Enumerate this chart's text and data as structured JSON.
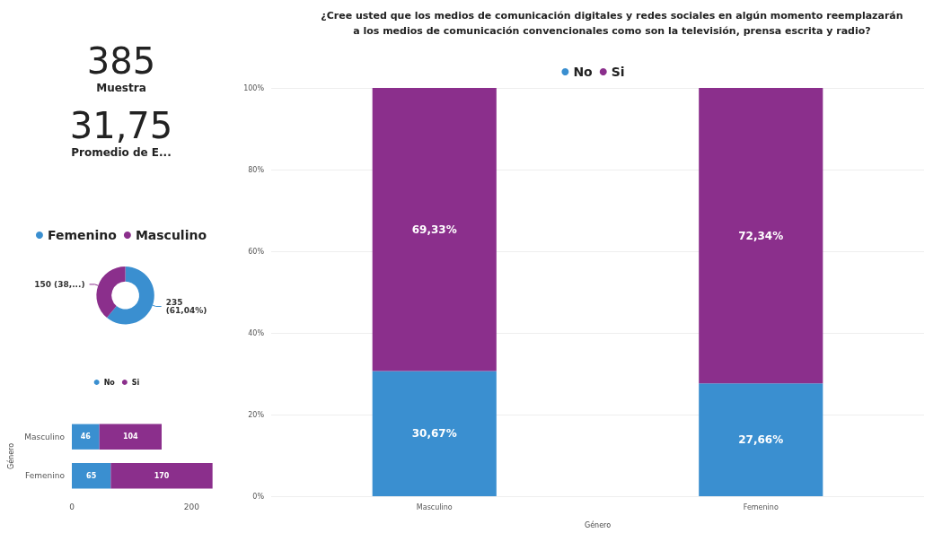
{
  "chart_data": [
    {
      "type": "other",
      "annotations": [
        "385",
        "Muestra",
        "31,75",
        "Promedio de E..."
      ]
    },
    {
      "type": "donut",
      "categories": [
        "Femenino",
        "Masculino"
      ],
      "values": [
        235,
        150
      ],
      "colors": [
        "#3a8fd0",
        "#8b2f8c"
      ],
      "value_labels": [
        "235\n(61,04%)",
        "150 (38,...)"
      ],
      "legend": "top"
    },
    {
      "type": "bar",
      "orientation": "horizontal",
      "stacked": true,
      "categories": [
        "Masculino",
        "Femenino"
      ],
      "ylabel": "Género",
      "xlim": [
        0,
        240
      ],
      "xticks": [
        0,
        200
      ],
      "data_labels": true,
      "legend": "top",
      "series": [
        {
          "name": "No",
          "color": "#3a8fd0",
          "values": [
            46,
            65
          ]
        },
        {
          "name": "Si",
          "color": "#8b2f8c",
          "values": [
            104,
            170
          ]
        }
      ]
    },
    {
      "type": "bar",
      "stacked": true,
      "title": "¿Cree usted que los medios de comunicación digitales y redes sociales en algún momento reemplazarán\na los medios de comunicación convencionales como son la televisión, prensa escrita y radio?",
      "categories": [
        "Masculino",
        "Femenino"
      ],
      "xlabel": "Género",
      "ylim": [
        0,
        100
      ],
      "yticks": [
        {
          "value": 0,
          "label": "0%"
        },
        {
          "value": 20,
          "label": "20%"
        },
        {
          "value": 40,
          "label": "40%"
        },
        {
          "value": 60,
          "label": "60%"
        },
        {
          "value": 80,
          "label": "80%"
        },
        {
          "value": 100,
          "label": "100%"
        }
      ],
      "grid": "y",
      "legend": "top",
      "series": [
        {
          "name": "No",
          "color": "#3a8fd0",
          "values": [
            30.67,
            27.66
          ],
          "value_labels": [
            "30,67%",
            "27,66%"
          ]
        },
        {
          "name": "Si",
          "color": "#8b2f8c",
          "values": [
            69.33,
            72.34
          ],
          "value_labels": [
            "69,33%",
            "72,34%"
          ]
        }
      ]
    }
  ]
}
